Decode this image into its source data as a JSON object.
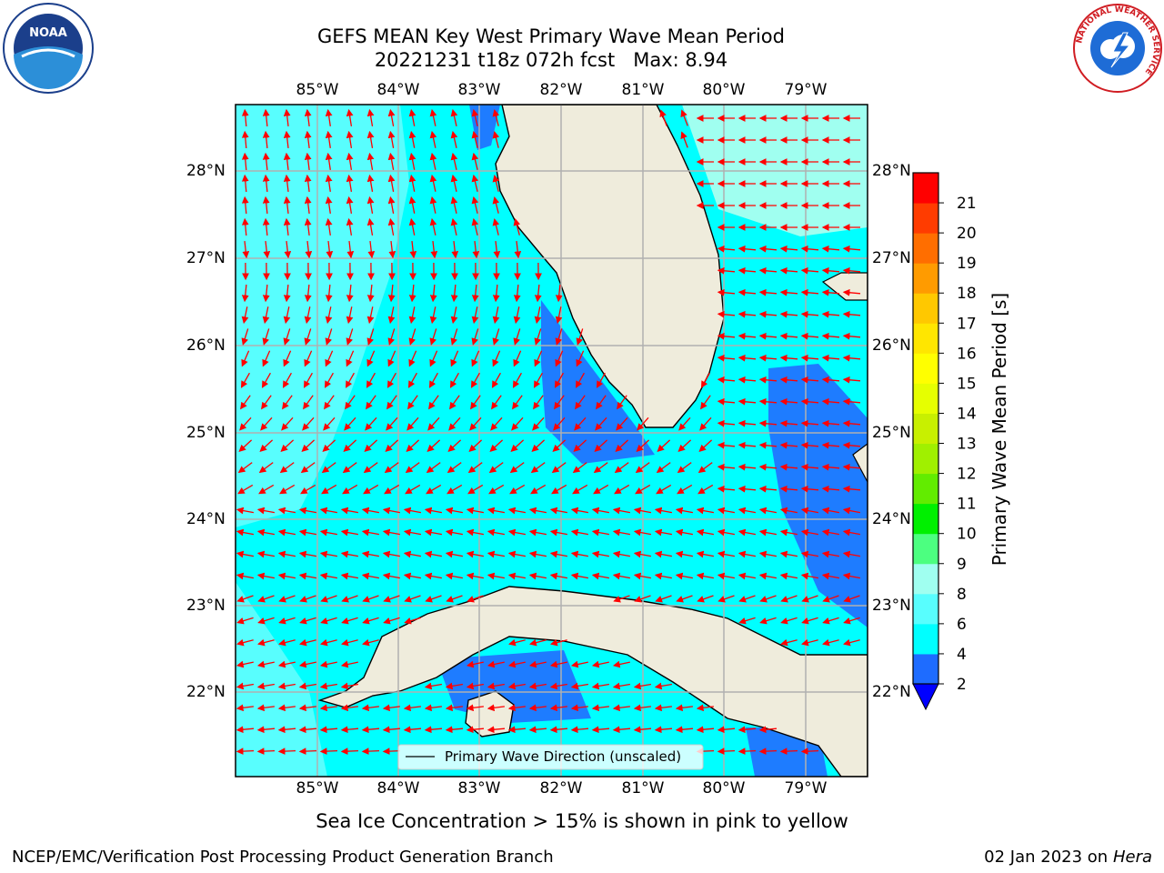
{
  "header": {
    "title_line1": "GEFS MEAN Key West Primary Wave Mean Period",
    "title_line2": "20221231 t18z 072h fcst   Max: 8.94"
  },
  "logos": {
    "noaa_text": "NOAA",
    "nws_ring_text": "NATIONAL WEATHER SERVICE"
  },
  "map": {
    "lon_labels": [
      "85°W",
      "84°W",
      "83°W",
      "82°W",
      "81°W",
      "80°W",
      "79°W"
    ],
    "lat_labels": [
      "28°N",
      "27°N",
      "26°N",
      "25°N",
      "24°N",
      "23°N",
      "22°N"
    ],
    "legend_label": "Primary Wave Direction (unscaled)",
    "colors": {
      "land": "#efecdc",
      "ocean_4_6": "#00ffff",
      "ocean_6_8": "#58fefe",
      "ocean_2_4": "#1e7cff",
      "arrow": "#ff0000"
    }
  },
  "colorbar": {
    "label": "Primary Wave Mean Period [s]",
    "ticks": [
      "2",
      "4",
      "6",
      "8",
      "9",
      "10",
      "11",
      "12",
      "13",
      "14",
      "15",
      "16",
      "17",
      "18",
      "19",
      "20",
      "21"
    ],
    "segment_colors": [
      "#1e6cff",
      "#00ffff",
      "#58fefe",
      "#a0fff0",
      "#4cff80",
      "#00f000",
      "#62ec00",
      "#a0f000",
      "#c8f000",
      "#e6ff00",
      "#ffff00",
      "#ffe600",
      "#ffc800",
      "#ff9b00",
      "#ff6e00",
      "#ff3c00",
      "#ff0000"
    ]
  },
  "footer": {
    "note": "Sea Ice Concentration > 15% is shown in pink to yellow",
    "branch": "NCEP/EMC/Verification Post Processing Product Generation Branch",
    "date_prefix": "02 Jan 2023 on ",
    "host": "Hera"
  }
}
